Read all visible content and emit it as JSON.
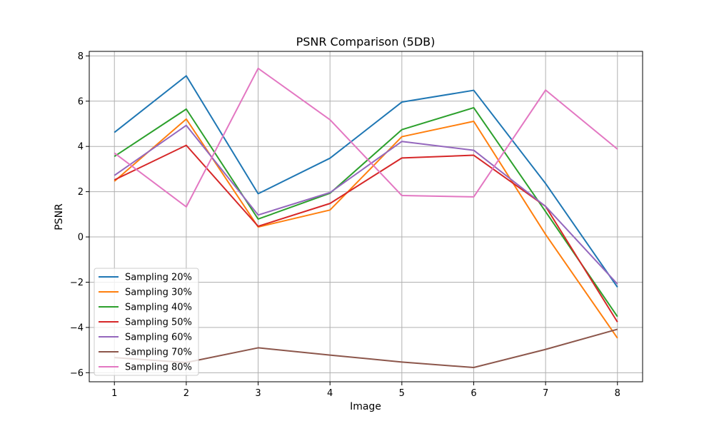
{
  "chart_data": {
    "type": "line",
    "title": "PSNR Comparison (5DB)",
    "xlabel": "Image",
    "ylabel": "PSNR",
    "x": [
      1,
      2,
      3,
      4,
      5,
      6,
      7,
      8
    ],
    "xlim": [
      0.65,
      8.35
    ],
    "ylim": [
      -6.4,
      8.2
    ],
    "xticks": [
      1,
      2,
      3,
      4,
      5,
      6,
      7,
      8
    ],
    "yticks": [
      -6,
      -4,
      -2,
      0,
      2,
      4,
      6,
      8
    ],
    "ytick_labels": [
      "−6",
      "−4",
      "−2",
      "0",
      "2",
      "4",
      "6",
      "8"
    ],
    "grid": true,
    "legend_position": "lower-left",
    "series": [
      {
        "name": "Sampling 20%",
        "color": "#1f77b4",
        "values": [
          4.62,
          7.12,
          1.91,
          3.48,
          5.96,
          6.48,
          2.36,
          -2.22
        ]
      },
      {
        "name": "Sampling 30%",
        "color": "#ff7f0e",
        "values": [
          2.46,
          5.21,
          0.44,
          1.19,
          4.43,
          5.11,
          0.11,
          -4.47
        ]
      },
      {
        "name": "Sampling 40%",
        "color": "#2ca02c",
        "values": [
          3.56,
          5.65,
          0.79,
          1.93,
          4.74,
          5.71,
          1.12,
          -3.52
        ]
      },
      {
        "name": "Sampling 50%",
        "color": "#d62728",
        "values": [
          2.52,
          4.05,
          0.47,
          1.48,
          3.49,
          3.61,
          1.35,
          -3.76
        ]
      },
      {
        "name": "Sampling 60%",
        "color": "#9467bd",
        "values": [
          2.72,
          4.93,
          0.97,
          1.96,
          4.22,
          3.83,
          1.35,
          -2.08
        ]
      },
      {
        "name": "Sampling 70%",
        "color": "#8c564b",
        "values": [
          -5.33,
          -5.55,
          -4.9,
          -5.22,
          -5.53,
          -5.77,
          -4.97,
          -4.08
        ]
      },
      {
        "name": "Sampling 80%",
        "color": "#e377c2",
        "values": [
          3.71,
          1.33,
          7.45,
          5.18,
          1.83,
          1.77,
          6.49,
          3.88
        ]
      }
    ]
  }
}
